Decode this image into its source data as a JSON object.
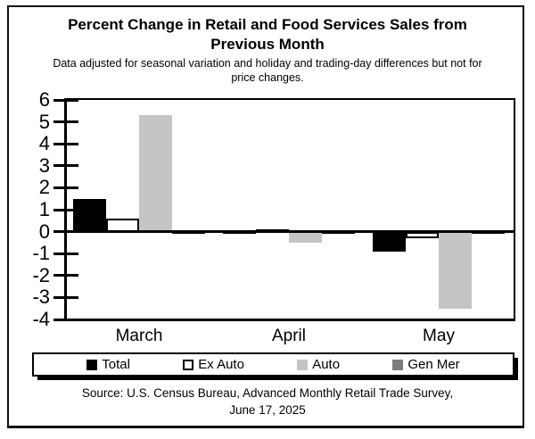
{
  "title": {
    "line1": "Percent Change in Retail and Food Services Sales from",
    "line2": "Previous Month"
  },
  "subtitle": {
    "line1": "Data adjusted for seasonal variation and holiday and trading-day differences but not for",
    "line2": "price changes."
  },
  "source": {
    "line1": "Source: U.S. Census Bureau, Advanced Monthly Retail Trade Survey,",
    "line2": "June 17, 2025"
  },
  "chart_data": {
    "type": "bar",
    "categories": [
      "March",
      "April",
      "May"
    ],
    "series": [
      {
        "name": "Total",
        "color": "#000000",
        "border": "#000000",
        "values": [
          1.5,
          -0.1,
          -0.9
        ]
      },
      {
        "name": "Ex Auto",
        "color": "#ffffff",
        "border": "#000000",
        "values": [
          0.6,
          0.1,
          -0.3
        ]
      },
      {
        "name": "Auto",
        "color": "#c5c5c5",
        "border": "#c5c5c5",
        "values": [
          5.3,
          -0.5,
          -3.5
        ]
      },
      {
        "name": "Gen Mer",
        "color": "#7d7d7d",
        "border": "#000000",
        "values": [
          0.0,
          -0.1,
          0.0
        ]
      }
    ],
    "ylim": [
      -4,
      6
    ],
    "ytick_step": 1,
    "grid": false,
    "legend_position": "bottom",
    "accent_color": "#000000"
  }
}
